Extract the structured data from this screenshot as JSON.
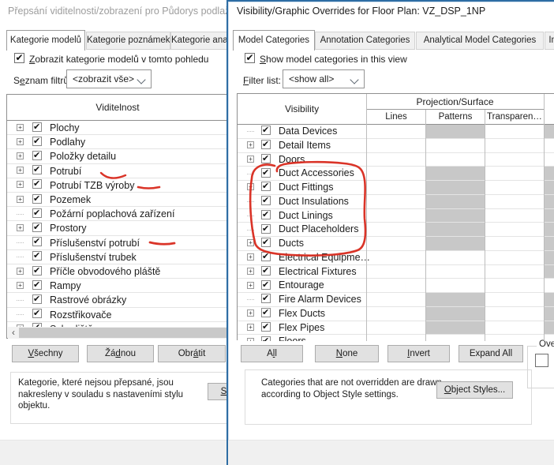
{
  "colors": {
    "accent_border": "#2e6da4",
    "annotation_red": "#d8291c",
    "disabled_cell": "#c8c8c8",
    "button_face": "#e1e1e1",
    "inactive_title": "#9d9d9d"
  },
  "icons": {
    "checkmark": "✔",
    "expander_plus": "+",
    "dropdown_chevron": "chevron-down",
    "scroll_left_arrow": "‹"
  },
  "left_dialog": {
    "title": "Přepsání viditelnosti/zobrazení pro Půdorys podlaží: V",
    "tabs": [
      {
        "label": "Kategorie modelů",
        "name": "kategorie-modelu",
        "active": true
      },
      {
        "label": "Kategorie poznámek",
        "name": "kategorie-poznamek",
        "active": false
      },
      {
        "label": "Kategorie analytick",
        "name": "kategorie-analytickych",
        "active": false
      }
    ],
    "show_checkbox": {
      "text": "Zobrazit kategorie modelů v tomto pohledu",
      "u": 0,
      "checked": true
    },
    "filter": {
      "label": {
        "text": "Seznam filtrů:",
        "u": 1
      },
      "value": "<zobrazit vše>"
    },
    "table": {
      "header": "Viditelnost",
      "rows": [
        {
          "label": "Plochy",
          "expand": true,
          "checked": true
        },
        {
          "label": "Podlahy",
          "expand": true,
          "checked": true
        },
        {
          "label": "Položky detailu",
          "expand": true,
          "checked": true
        },
        {
          "label": "Potrubí",
          "expand": true,
          "checked": true,
          "mark": "red-squiggle"
        },
        {
          "label": "Potrubí TZB výroby",
          "expand": true,
          "checked": true,
          "mark": "red-dash"
        },
        {
          "label": "Pozemek",
          "expand": true,
          "checked": true
        },
        {
          "label": "Požární poplachová zařízení",
          "expand": false,
          "checked": true
        },
        {
          "label": "Prostory",
          "expand": true,
          "checked": true
        },
        {
          "label": "Příslušenství potrubí",
          "expand": false,
          "checked": true,
          "mark": "red-dash"
        },
        {
          "label": "Příslušenství trubek",
          "expand": false,
          "checked": true
        },
        {
          "label": "Příčle obvodového pláště",
          "expand": true,
          "checked": true
        },
        {
          "label": "Rampy",
          "expand": true,
          "checked": true
        },
        {
          "label": "Rastrové obrázky",
          "expand": false,
          "checked": true
        },
        {
          "label": "Rozstřikovače",
          "expand": false,
          "checked": true
        },
        {
          "label": "Schodiště",
          "expand": true,
          "checked": true,
          "partial": true
        }
      ]
    },
    "buttons": [
      {
        "text": "Všechny",
        "u": 0,
        "name": "vsechny"
      },
      {
        "text": "Žádnou",
        "u": 2,
        "name": "zadnou"
      },
      {
        "text": "Obrátit",
        "u": 3,
        "name": "obratit"
      }
    ],
    "note": "Kategorie, které nejsou přepsané, jsou nakresleny v souladu s nastaveními stylu objektu.",
    "partial_button": {
      "text": "St",
      "u": 0,
      "name": "styly-objektu"
    }
  },
  "right_dialog": {
    "title": "Visibility/Graphic Overrides for Floor Plan: VZ_DSP_1NP",
    "tabs": [
      {
        "label": "Model Categories",
        "name": "model-categories",
        "active": true
      },
      {
        "label": "Annotation Categories",
        "name": "annotation-categories",
        "active": false
      },
      {
        "label": "Analytical Model Categories",
        "name": "analytical-model-categories",
        "active": false
      },
      {
        "label": "Imported Categ",
        "name": "imported-categories",
        "active": false
      }
    ],
    "show_checkbox": {
      "text": "Show model categories in this view",
      "u": 0,
      "checked": true
    },
    "filter": {
      "label": {
        "text": "Filter list:",
        "u": 0
      },
      "value": "<show all>"
    },
    "table": {
      "visibility_header": "Visibility",
      "group_header": "Projection/Surface",
      "columns": [
        "Lines",
        "Patterns",
        "Transparen…"
      ],
      "rows": [
        {
          "label": "Data Devices",
          "expand": false,
          "checked": true,
          "patterns_gray": true,
          "cut_gray": true
        },
        {
          "label": "Detail Items",
          "expand": true,
          "checked": true,
          "patterns_gray": false,
          "cut_gray": false
        },
        {
          "label": "Doors",
          "expand": true,
          "checked": true,
          "patterns_gray": false,
          "cut_gray": false
        },
        {
          "label": "Duct Accessories",
          "expand": false,
          "checked": true,
          "patterns_gray": true,
          "cut_gray": true,
          "circled": true
        },
        {
          "label": "Duct Fittings",
          "expand": true,
          "checked": true,
          "patterns_gray": true,
          "cut_gray": true,
          "circled": true
        },
        {
          "label": "Duct Insulations",
          "expand": false,
          "checked": true,
          "patterns_gray": true,
          "cut_gray": true,
          "circled": true
        },
        {
          "label": "Duct Linings",
          "expand": false,
          "checked": true,
          "patterns_gray": true,
          "cut_gray": true,
          "circled": true
        },
        {
          "label": "Duct Placeholders",
          "expand": false,
          "checked": true,
          "patterns_gray": true,
          "cut_gray": true,
          "circled": true
        },
        {
          "label": "Ducts",
          "expand": true,
          "checked": true,
          "patterns_gray": true,
          "cut_gray": true,
          "circled": true
        },
        {
          "label": "Electrical Equipme…",
          "expand": true,
          "checked": true,
          "patterns_gray": false,
          "cut_gray": true
        },
        {
          "label": "Electrical Fixtures",
          "expand": true,
          "checked": true,
          "patterns_gray": false,
          "cut_gray": true
        },
        {
          "label": "Entourage",
          "expand": true,
          "checked": true,
          "patterns_gray": false,
          "cut_gray": false
        },
        {
          "label": "Fire Alarm Devices",
          "expand": false,
          "checked": true,
          "patterns_gray": true,
          "cut_gray": true
        },
        {
          "label": "Flex Ducts",
          "expand": true,
          "checked": true,
          "patterns_gray": true,
          "cut_gray": true
        },
        {
          "label": "Flex Pipes",
          "expand": true,
          "checked": true,
          "patterns_gray": true,
          "cut_gray": true
        },
        {
          "label": "Floors",
          "expand": true,
          "checked": true,
          "partial": true
        }
      ]
    },
    "buttons": [
      {
        "text": "All",
        "u": 1,
        "name": "all"
      },
      {
        "text": "None",
        "u": 0,
        "name": "none"
      },
      {
        "text": "Invert",
        "u": 0,
        "name": "invert"
      },
      {
        "text": "Expand All",
        "u": -1,
        "name": "expand-all"
      }
    ],
    "note": "Categories that are not overridden are drawn according to Object Style settings.",
    "object_styles_button": {
      "text": "Object Styles...",
      "u": 0,
      "name": "object-styles"
    },
    "overrides_fragment": {
      "label": "Ove",
      "checkbox_checked": false
    }
  }
}
